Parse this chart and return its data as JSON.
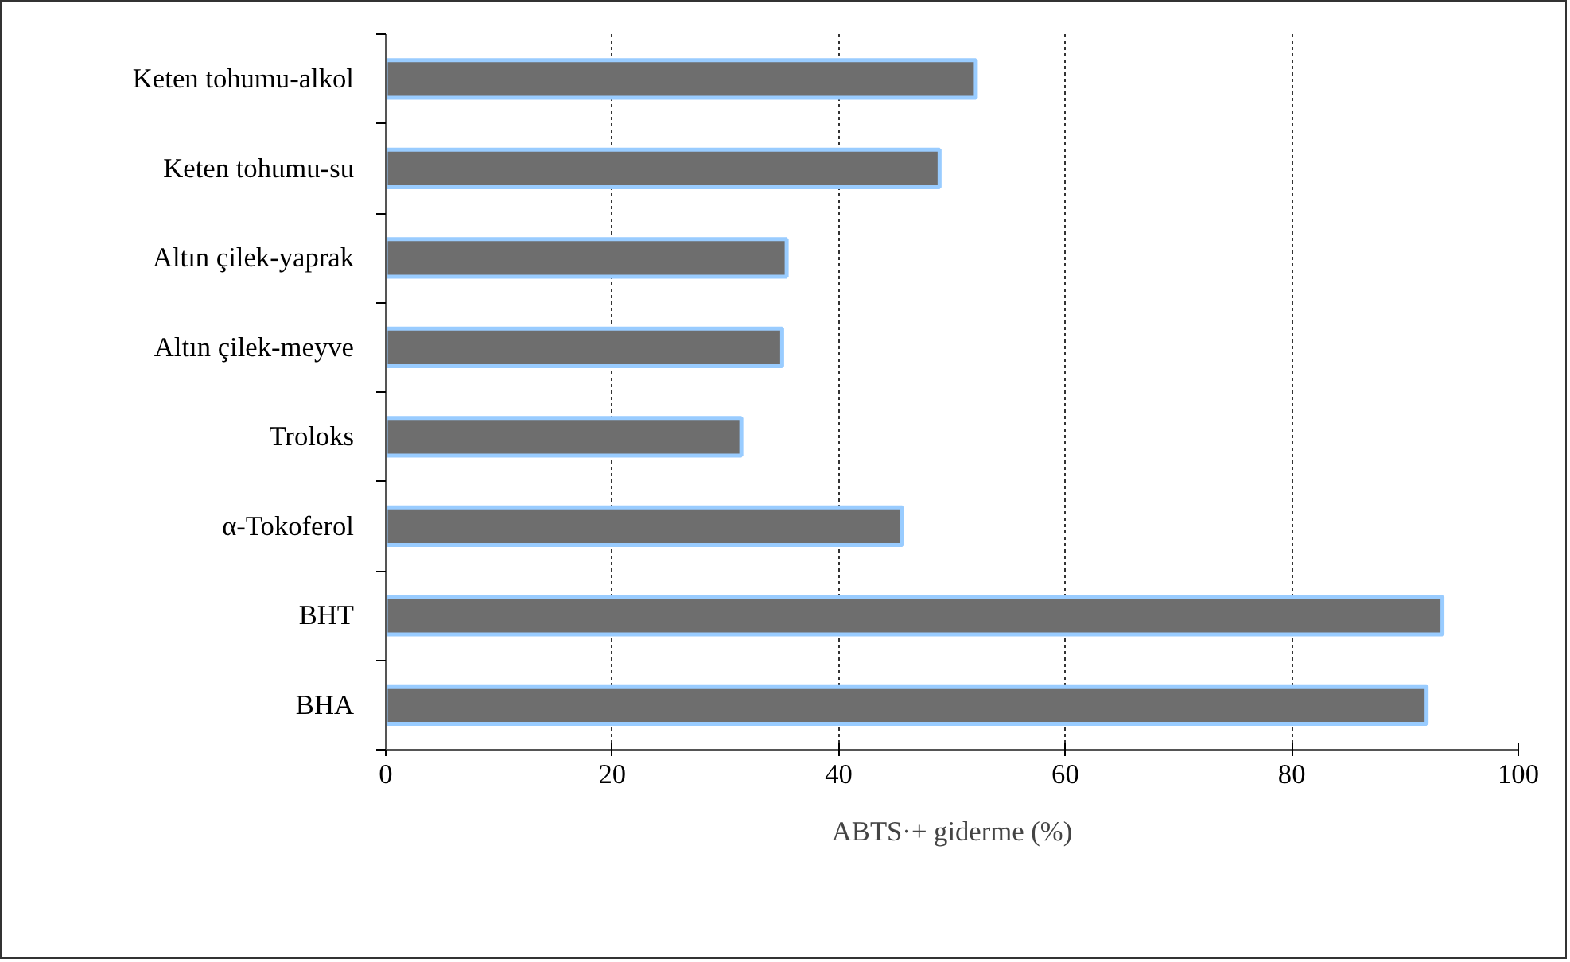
{
  "chart_data": {
    "type": "bar",
    "orientation": "horizontal",
    "xlabel": "ABTS·+ giderme (%)",
    "categories": [
      "Keten tohumu-alkol",
      "Keten tohumu-su",
      "Altın çilek-yaprak",
      "Altın çilek-meyve",
      "Troloks",
      "α-Tokoferol",
      "BHT",
      "BHA"
    ],
    "values": [
      52.1,
      48.9,
      35.4,
      35.0,
      31.4,
      45.6,
      93.3,
      91.9
    ],
    "color": "#6e6e6e",
    "xlim": [
      0,
      100
    ],
    "xticks": [
      0,
      20,
      40,
      60,
      80,
      100
    ],
    "grid": "x"
  }
}
